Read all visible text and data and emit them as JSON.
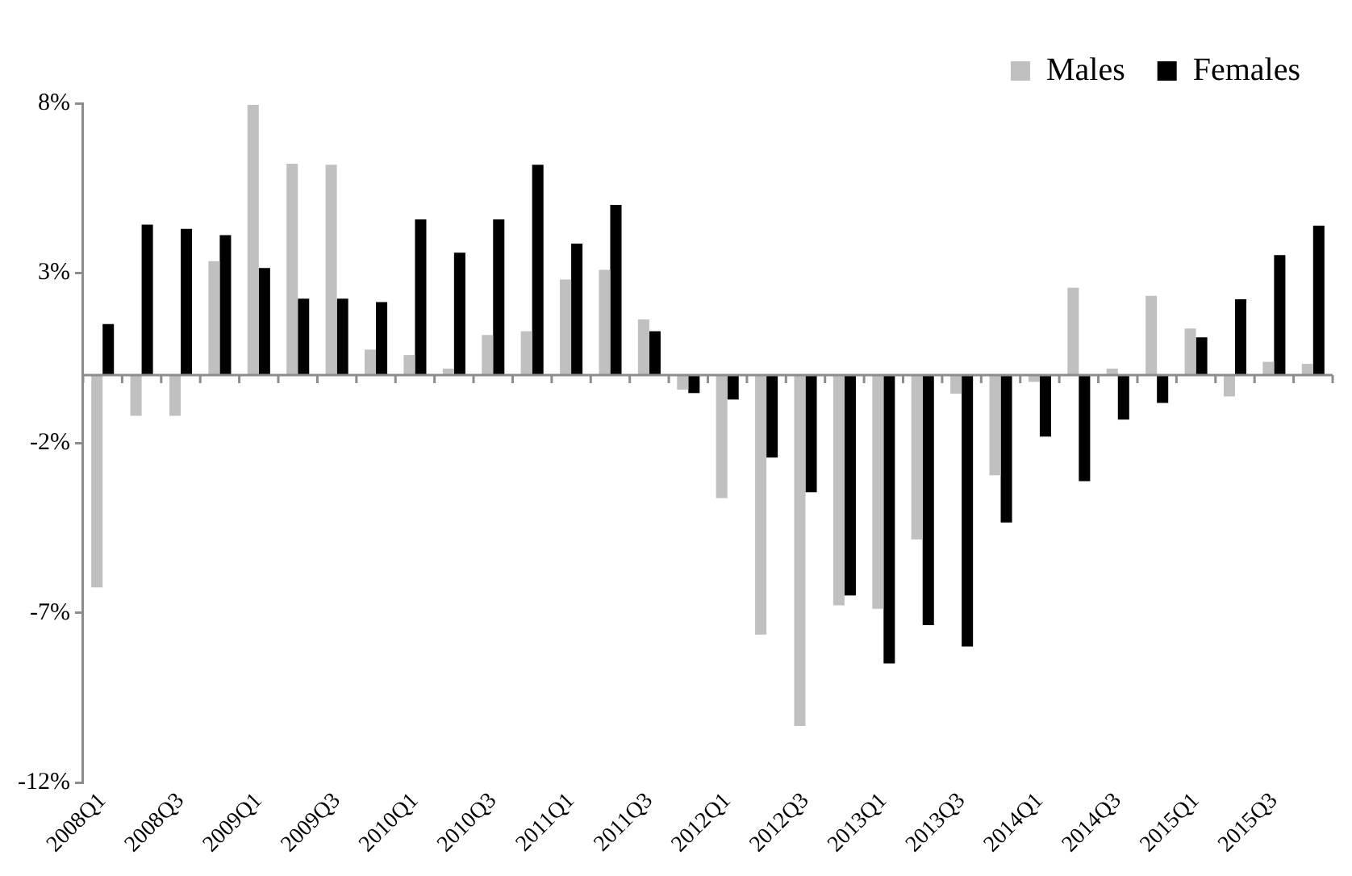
{
  "chart_data": {
    "type": "bar",
    "categories": [
      "2008Q1",
      null,
      "2008Q3",
      null,
      "2009Q1",
      null,
      "2009Q3",
      null,
      "2010Q1",
      null,
      "2010Q3",
      null,
      "2011Q1",
      null,
      "2011Q3",
      null,
      "2012Q1",
      null,
      "2012Q3",
      null,
      "2013Q1",
      null,
      "2013Q3",
      null,
      "2014Q1",
      null,
      "2014Q3",
      null,
      "2015Q1",
      null,
      "2015Q3",
      null
    ],
    "series": [
      {
        "name": "Males",
        "color": "#c0c0c0",
        "values": [
          -6.25,
          -1.2,
          -1.2,
          3.35,
          7.95,
          6.22,
          6.19,
          0.75,
          0.59,
          0.19,
          1.18,
          1.29,
          2.81,
          3.1,
          1.64,
          -0.43,
          -3.62,
          -7.64,
          -10.33,
          -6.78,
          -6.88,
          -4.84,
          -0.55,
          -2.95,
          -0.2,
          2.57,
          0.19,
          2.33,
          1.37,
          -0.63,
          0.39,
          0.33
        ]
      },
      {
        "name": "Females",
        "color": "#000000",
        "values": [
          1.5,
          4.43,
          4.3,
          4.12,
          3.15,
          2.25,
          2.25,
          2.15,
          4.58,
          3.6,
          4.58,
          6.19,
          3.87,
          5.01,
          1.29,
          -0.53,
          -0.72,
          -2.43,
          -3.45,
          -6.49,
          -8.49,
          -7.36,
          -7.99,
          -4.34,
          -1.81,
          -3.12,
          -1.31,
          -0.82,
          1.11,
          2.23,
          3.53,
          4.4
        ]
      }
    ],
    "ylim": [
      -12,
      8
    ],
    "yticks": [
      {
        "value": -12,
        "label": "-12%"
      },
      {
        "value": -7,
        "label": "-7%"
      },
      {
        "value": -2,
        "label": "-2%"
      },
      {
        "value": 3,
        "label": "3%"
      },
      {
        "value": 8,
        "label": "8%"
      }
    ],
    "legend": "top right"
  }
}
